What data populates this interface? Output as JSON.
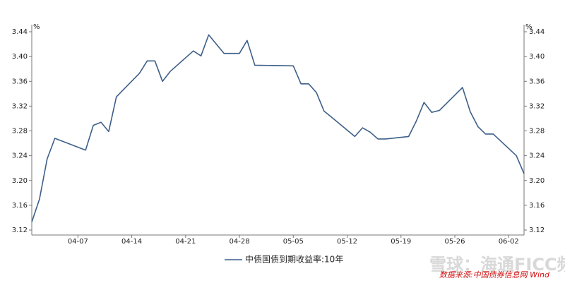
{
  "chart_data": {
    "type": "line",
    "y_label": "%",
    "y2_label": "%",
    "x": [
      "04-01",
      "04-02",
      "04-03",
      "04-04",
      "04-08",
      "04-09",
      "04-10",
      "04-11",
      "04-12",
      "04-15",
      "04-16",
      "04-17",
      "04-18",
      "04-19",
      "04-22",
      "04-23",
      "04-24",
      "04-25",
      "04-26",
      "04-28",
      "04-29",
      "04-30",
      "05-05",
      "05-06",
      "05-07",
      "05-08",
      "05-09",
      "05-10",
      "05-13",
      "05-14",
      "05-15",
      "05-16",
      "05-17",
      "05-20",
      "05-21",
      "05-22",
      "05-23",
      "05-24",
      "05-27",
      "05-28",
      "05-29",
      "05-30",
      "05-31",
      "06-03",
      "06-04"
    ],
    "series": [
      {
        "name": "中债国债到期收益率:10年",
        "color": "#3d5f88",
        "values": [
          3.133,
          3.17,
          3.235,
          3.268,
          3.249,
          3.289,
          3.294,
          3.279,
          3.335,
          3.373,
          3.393,
          3.393,
          3.36,
          3.376,
          3.409,
          3.401,
          3.435,
          3.42,
          3.405,
          3.405,
          3.426,
          3.386,
          3.385,
          3.356,
          3.356,
          3.342,
          3.312,
          3.302,
          3.271,
          3.285,
          3.278,
          3.267,
          3.267,
          3.271,
          3.296,
          3.326,
          3.31,
          3.313,
          3.35,
          3.311,
          3.287,
          3.275,
          3.275,
          3.24,
          3.211
        ]
      }
    ],
    "xlim": [
      "04-01",
      "06-04"
    ],
    "xticks": [
      "04-07",
      "04-14",
      "04-21",
      "04-28",
      "05-05",
      "05-12",
      "05-19",
      "05-26",
      "06-02"
    ],
    "ylim": [
      3.12,
      3.44
    ],
    "yticks": [
      3.12,
      3.16,
      {
        "value": 3.2,
        "label": "3.20"
      },
      3.24,
      3.28,
      3.32,
      3.36,
      {
        "value": 3.4,
        "label": "3.40"
      },
      3.44
    ],
    "y2lim": [
      3.12,
      3.44
    ],
    "y2ticks": [
      3.12,
      3.16,
      {
        "value": 3.2,
        "label": "3.20"
      },
      3.24,
      3.28,
      3.32,
      3.36,
      {
        "value": 3.4,
        "label": "3.40"
      },
      3.44
    ],
    "legend": "bottom",
    "watermark": "雪球：海通FICC频道",
    "source": "数据来源:中国债券信息网 Wind"
  }
}
